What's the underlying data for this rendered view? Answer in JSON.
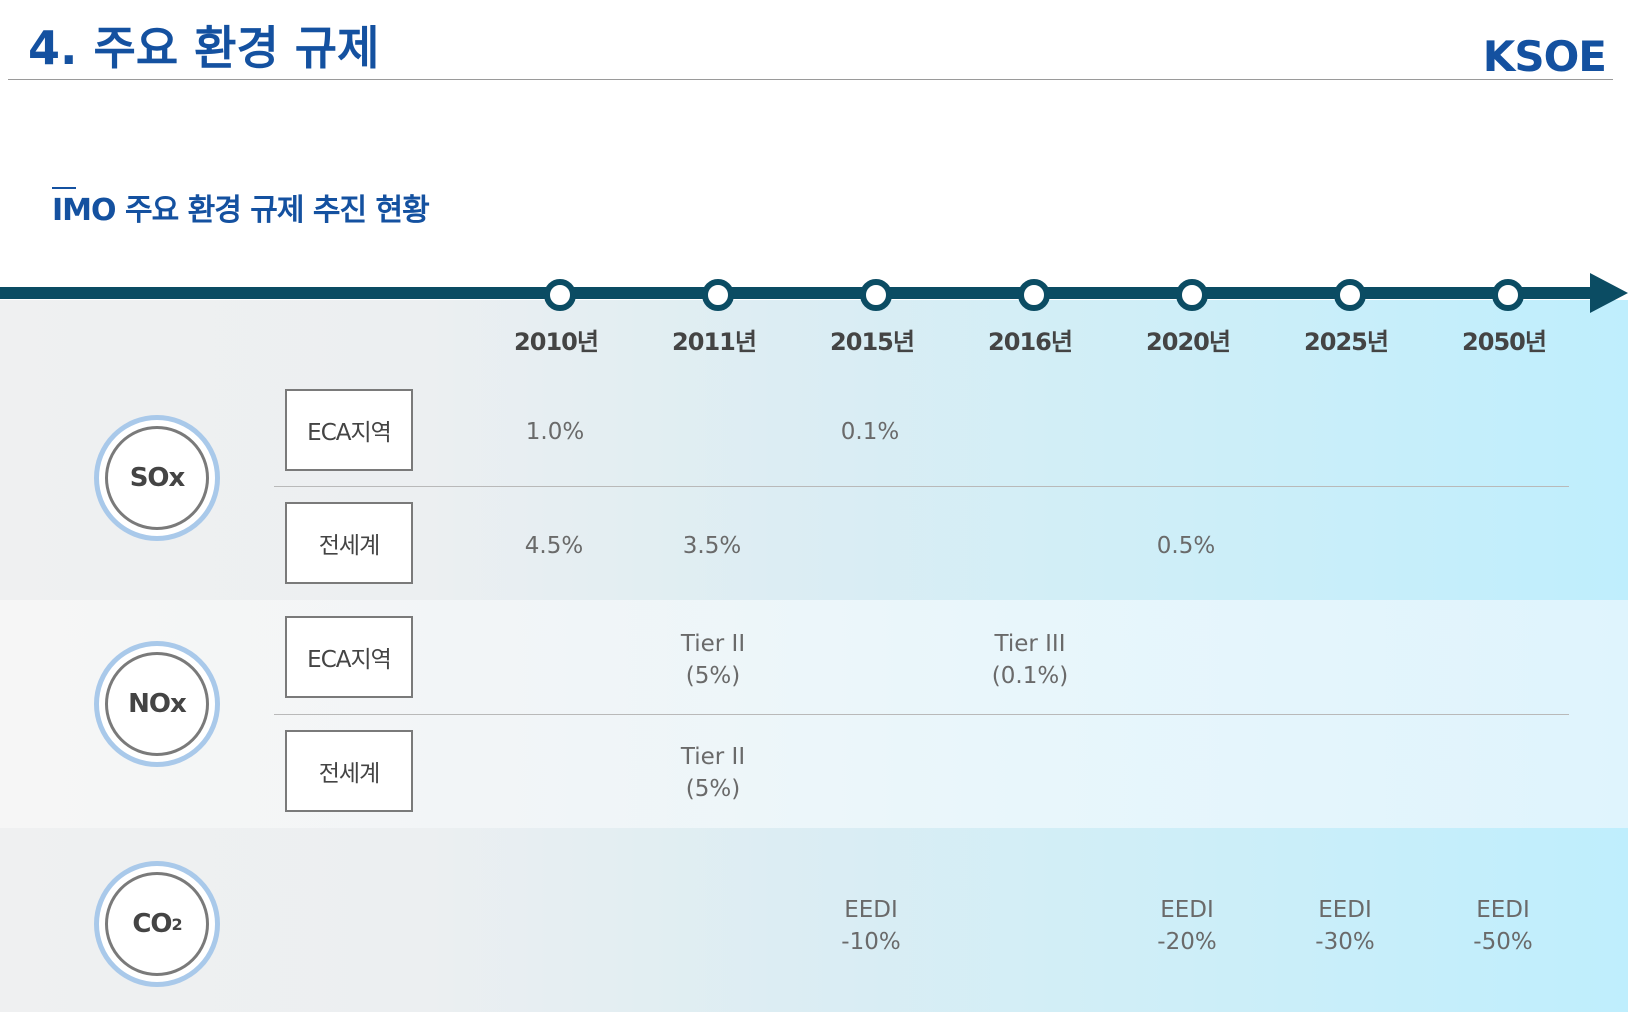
{
  "header": {
    "title": "4. 주요 환경 규제",
    "logo": "KSOE",
    "subtitle": "IMO 주요 환경 규제 추진 현황"
  },
  "timeline": {
    "years": [
      "2010년",
      "2011년",
      "2015년",
      "2016년",
      "2020년",
      "2025년",
      "2050년"
    ]
  },
  "categories": {
    "sox": {
      "label": "SOx",
      "rows": [
        {
          "scope": "ECA지역",
          "values": [
            "1.0%",
            "",
            "0.1%",
            "",
            "",
            "",
            ""
          ]
        },
        {
          "scope": "전세계",
          "values": [
            "4.5%",
            "3.5%",
            "",
            "",
            "0.5%",
            "",
            ""
          ]
        }
      ]
    },
    "nox": {
      "label": "NOx",
      "rows": [
        {
          "scope": "ECA지역",
          "values": [
            "",
            "Tier II\n(5%)",
            "",
            "Tier III\n(0.1%)",
            "",
            "",
            ""
          ]
        },
        {
          "scope": "전세계",
          "values": [
            "",
            "Tier II\n(5%)",
            "",
            "",
            "",
            "",
            ""
          ]
        }
      ]
    },
    "co2": {
      "label": "CO",
      "label_sub": "2",
      "rows": [
        {
          "scope": "",
          "values": [
            "",
            "",
            "EEDI\n-10%",
            "",
            "EEDI\n-20%",
            "EEDI\n-30%",
            "EEDI\n-50%"
          ]
        }
      ]
    }
  }
}
